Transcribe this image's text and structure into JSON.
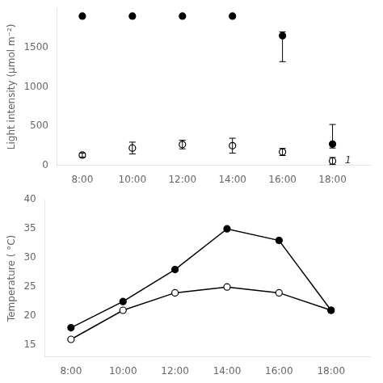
{
  "chart_data": [
    {
      "type": "scatter",
      "x": [
        8,
        10,
        12,
        14,
        16,
        18
      ],
      "xlim": [
        7,
        19.5
      ],
      "xticks": [
        {
          "value": 8,
          "label": "8:00"
        },
        {
          "value": 10,
          "label": "10:00"
        },
        {
          "value": 12,
          "label": "12:00"
        },
        {
          "value": 14,
          "label": "14:00"
        },
        {
          "value": 16,
          "label": "16:00"
        },
        {
          "value": 18,
          "label": "18:00"
        }
      ],
      "ylabel": "Light intensity (μmol m⁻²)",
      "ylim": [
        0,
        2000
      ],
      "yticks": [
        0,
        500,
        1000,
        1500
      ],
      "grid": false,
      "series": [
        {
          "color": "#000000",
          "marker": "circle",
          "values": [
            1900,
            1900,
            1900,
            1900,
            1650,
            270
          ],
          "error_lo": [
            0,
            0,
            0,
            0,
            330,
            50
          ],
          "error_hi": [
            0,
            0,
            0,
            0,
            50,
            250
          ]
        },
        {
          "color": "#000000",
          "marker": "open_circle",
          "values": [
            130,
            220,
            265,
            250,
            170,
            55
          ],
          "error_lo": [
            25,
            75,
            55,
            95,
            45,
            45
          ],
          "error_hi": [
            25,
            75,
            55,
            95,
            45,
            45
          ]
        }
      ],
      "annotations": [
        {
          "text": "1",
          "x": 18.5,
          "y": 60
        }
      ]
    },
    {
      "type": "line",
      "x": [
        8,
        10,
        12,
        14,
        16,
        18
      ],
      "xlim": [
        7,
        19.5
      ],
      "xticks": [
        {
          "value": 8,
          "label": "8:00"
        },
        {
          "value": 10,
          "label": "10:00"
        },
        {
          "value": 12,
          "label": "12:00"
        },
        {
          "value": 14,
          "label": "14:00"
        },
        {
          "value": 16,
          "label": "16:00"
        },
        {
          "value": 18,
          "label": "18:00"
        }
      ],
      "ylabel": "Temperature ( °C)",
      "ylim": [
        13,
        40
      ],
      "yticks": [
        15,
        20,
        25,
        30,
        35,
        40
      ],
      "grid": false,
      "series": [
        {
          "color": "#000000",
          "marker": "circle",
          "line_style": "solid",
          "values": [
            18,
            22.5,
            28,
            35,
            33,
            21
          ]
        },
        {
          "color": "#000000",
          "marker": "open_circle",
          "line_style": "solid",
          "values": [
            16,
            21,
            24,
            25,
            24,
            21
          ]
        }
      ]
    }
  ]
}
